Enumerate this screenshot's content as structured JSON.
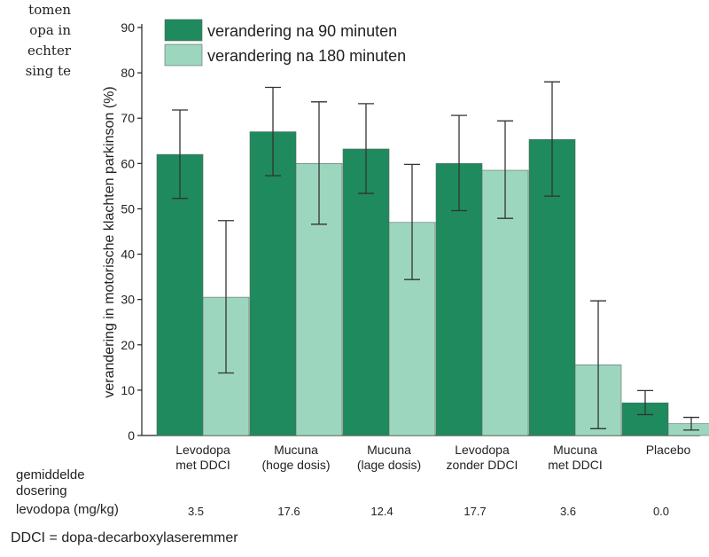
{
  "side_text": [
    "tomen",
    "opa in",
    "echter",
    "sing te"
  ],
  "chart_data": {
    "type": "bar",
    "ylabel": "verandering in motorische klachten parkinson (%)",
    "ylim": [
      0,
      90
    ],
    "yticks": [
      0,
      10,
      20,
      30,
      40,
      50,
      60,
      70,
      80,
      90
    ],
    "categories": [
      [
        "Levodopa",
        "met DDCI"
      ],
      [
        "Mucuna",
        "(hoge dosis)"
      ],
      [
        "Mucuna",
        "(lage dosis)"
      ],
      [
        "Levodopa",
        "zonder DDCI"
      ],
      [
        "Mucuna",
        "met DDCI"
      ],
      [
        "Placebo"
      ]
    ],
    "series": [
      {
        "name": "verandering na 90 minuten",
        "color": "#1e8a5e",
        "values": [
          62,
          67,
          63.2,
          60,
          65.3,
          7.2
        ],
        "error": [
          [
            52.3,
            71.8
          ],
          [
            57.3,
            76.8
          ],
          [
            53.4,
            73.2
          ],
          [
            49.6,
            70.6
          ],
          [
            52.8,
            78.0
          ],
          [
            4.6,
            9.9
          ]
        ]
      },
      {
        "name": "verandering na 180 minuten",
        "color": "#9dd6bf",
        "values": [
          30.5,
          60,
          47,
          58.5,
          15.6,
          2.6
        ],
        "error": [
          [
            13.8,
            47.4
          ],
          [
            46.6,
            73.6
          ],
          [
            34.4,
            59.8
          ],
          [
            47.9,
            69.4
          ],
          [
            1.5,
            29.7
          ],
          [
            1.2,
            4.0
          ]
        ]
      }
    ],
    "dosage_label": [
      "gemiddelde",
      "dosering",
      "levodopa (mg/kg)"
    ],
    "dosage_values": [
      "3.5",
      "17.6",
      "12.4",
      "17.7",
      "3.6",
      "0.0"
    ],
    "legend_position": "top-left"
  },
  "footnote": "DDCI = dopa-decarboxylaseremmer"
}
